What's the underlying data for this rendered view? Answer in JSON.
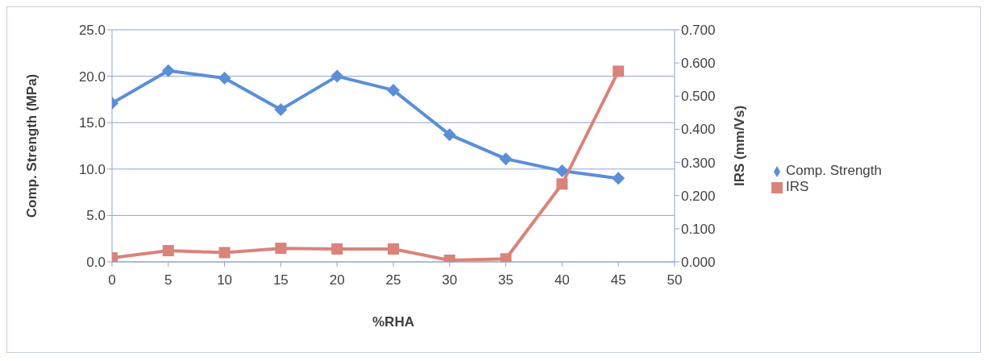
{
  "chart_data": {
    "type": "line",
    "xlabel": "%RHA",
    "ylabel": "Comp. Strength (MPa)",
    "y2label": "IRS (mm/Vs)",
    "x": [
      0,
      5,
      10,
      15,
      20,
      25,
      30,
      35,
      40,
      45
    ],
    "series": [
      {
        "name": "Comp. Strength",
        "color": "#5a8ed8",
        "marker": "diamond",
        "values": [
          17.1,
          20.6,
          19.8,
          16.4,
          20.0,
          18.5,
          13.7,
          11.1,
          9.8,
          9.0
        ]
      },
      {
        "name": "IRS",
        "color": "#d9837b",
        "marker": "square",
        "axis": "y2",
        "values": [
          0.012,
          0.034,
          0.028,
          0.041,
          0.039,
          0.039,
          0.005,
          0.009,
          0.235,
          0.575
        ]
      }
    ],
    "xlim": [
      0,
      50
    ],
    "xticks": [
      0,
      5,
      10,
      15,
      20,
      25,
      30,
      35,
      40,
      45,
      50
    ],
    "ylim": [
      0,
      25
    ],
    "yticks": [
      {
        "value": 0,
        "label": "0.0"
      },
      {
        "value": 5,
        "label": "5.0"
      },
      {
        "value": 10,
        "label": "10.0"
      },
      {
        "value": 15,
        "label": "15.0"
      },
      {
        "value": 20,
        "label": "20.0"
      },
      {
        "value": 25,
        "label": "25.0"
      }
    ],
    "y2lim": [
      0,
      0.7
    ],
    "y2ticks": [
      {
        "value": 0,
        "label": "0.000"
      },
      {
        "value": 0.1,
        "label": "0.100"
      },
      {
        "value": 0.2,
        "label": "0.200"
      },
      {
        "value": 0.3,
        "label": "0.300"
      },
      {
        "value": 0.4,
        "label": "0.400"
      },
      {
        "value": 0.5,
        "label": "0.500"
      },
      {
        "value": 0.6,
        "label": "0.600"
      },
      {
        "value": 0.7,
        "label": "0.700"
      }
    ],
    "grid": "y",
    "legend": "right",
    "line_style": "solid"
  }
}
